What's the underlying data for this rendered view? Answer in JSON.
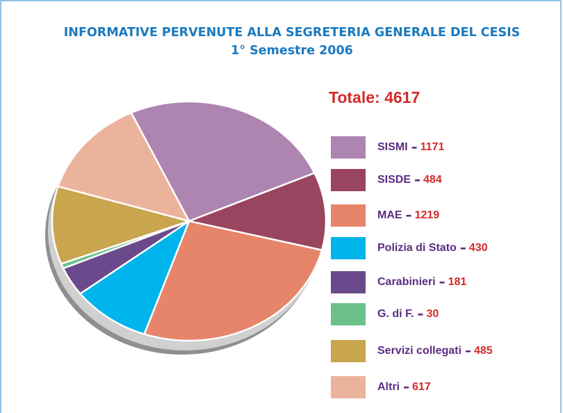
{
  "chart_data": {
    "type": "pie",
    "title": "INFORMATIVE PERVENUTE ALLA SEGRETERIA GENERALE DEL CESIS",
    "subtitle": "1° Semestre 2006",
    "total": "Totale: 4617",
    "categories": [
      "SISMI",
      "SISDE",
      "MAE",
      "Polizia di Stato",
      "Carabinieri",
      "G. di F.",
      "Servizi collegati",
      "Altri"
    ],
    "values": [
      1171,
      484,
      1219,
      430,
      181,
      30,
      485,
      617
    ],
    "colors": [
      "#ad85b0",
      "#9a4560",
      "#e6856a",
      "#00b4ec",
      "#6a4a8c",
      "#6cc08a",
      "#c9a54e",
      "#ecb39c"
    ],
    "legend": "right"
  }
}
